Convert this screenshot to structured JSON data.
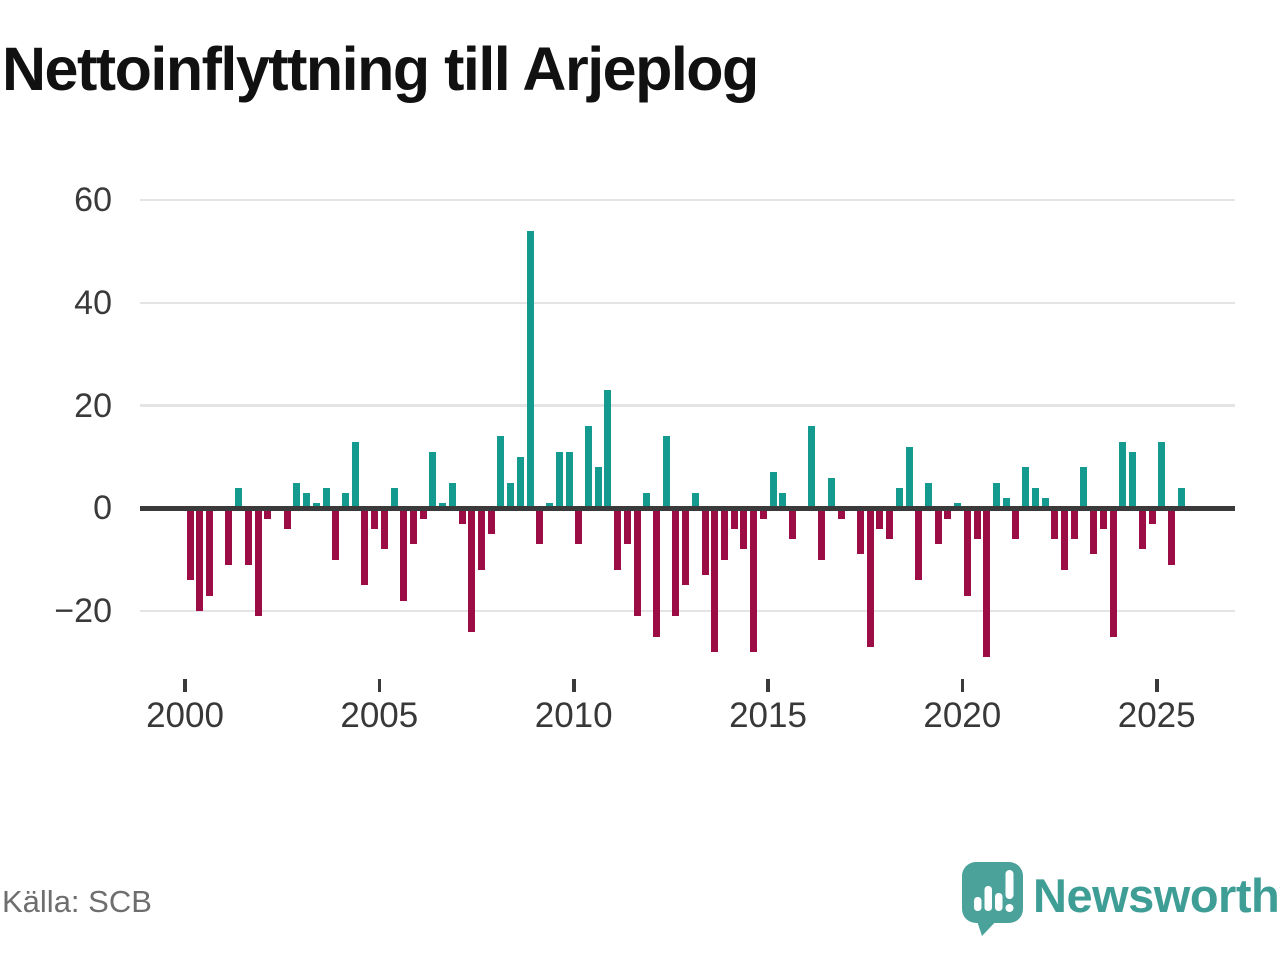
{
  "title": "Nettoinflyttning till Arjeplog",
  "source": "Källa: SCB",
  "logo": {
    "text": "Newsworthy"
  },
  "colors": {
    "positive": "#149a8e",
    "negative": "#9c0d46",
    "grid": "#e4e4e4",
    "zero_line": "#3a3a3a",
    "axis_text": "#3a3a3a",
    "title_text": "#111111",
    "source_text": "#6e6e6e",
    "logo_teal": "#4aa29b"
  },
  "chart_data": {
    "type": "bar",
    "title": "Nettoinflyttning till Arjeplog",
    "xlabel": "",
    "ylabel": "",
    "ylim": [
      -32,
      62
    ],
    "grid": "horizontal",
    "legend": "none",
    "y_ticks": [
      60,
      40,
      20,
      0,
      -20
    ],
    "y_tick_labels": [
      "60",
      "40",
      "20",
      "0",
      "−20"
    ],
    "x_tick_years": [
      2000,
      2005,
      2010,
      2015,
      2020,
      2025
    ],
    "x_tick_labels": [
      "2000",
      "2005",
      "2010",
      "2015",
      "2020",
      "2025"
    ],
    "start_quarter": "2000-Q1",
    "frequency": "quarterly",
    "series": [
      {
        "name": "Nettoinflyttning",
        "values": [
          -14,
          -20,
          -17,
          0,
          -11,
          4,
          -11,
          -21,
          -2,
          0,
          -4,
          5,
          3,
          1,
          4,
          -10,
          3,
          13,
          -15,
          -4,
          -8,
          4,
          -18,
          -7,
          -2,
          11,
          1,
          5,
          -3,
          -24,
          -12,
          -5,
          14,
          5,
          10,
          54,
          -7,
          1,
          11,
          11,
          -7,
          16,
          8,
          23,
          -12,
          -7,
          -21,
          3,
          -25,
          14,
          -21,
          -15,
          3,
          -13,
          -28,
          -10,
          -4,
          -8,
          -28,
          -2,
          7,
          3,
          -6,
          0,
          16,
          -10,
          6,
          -2,
          0,
          -9,
          -27,
          -4,
          -6,
          4,
          12,
          -14,
          5,
          -7,
          -2,
          1,
          -17,
          -6,
          -29,
          5,
          2,
          -6,
          8,
          4,
          2,
          -6,
          -12,
          -6,
          8,
          -9,
          -4,
          -25,
          13,
          11,
          -8,
          -3,
          13,
          -11,
          4
        ]
      }
    ]
  }
}
